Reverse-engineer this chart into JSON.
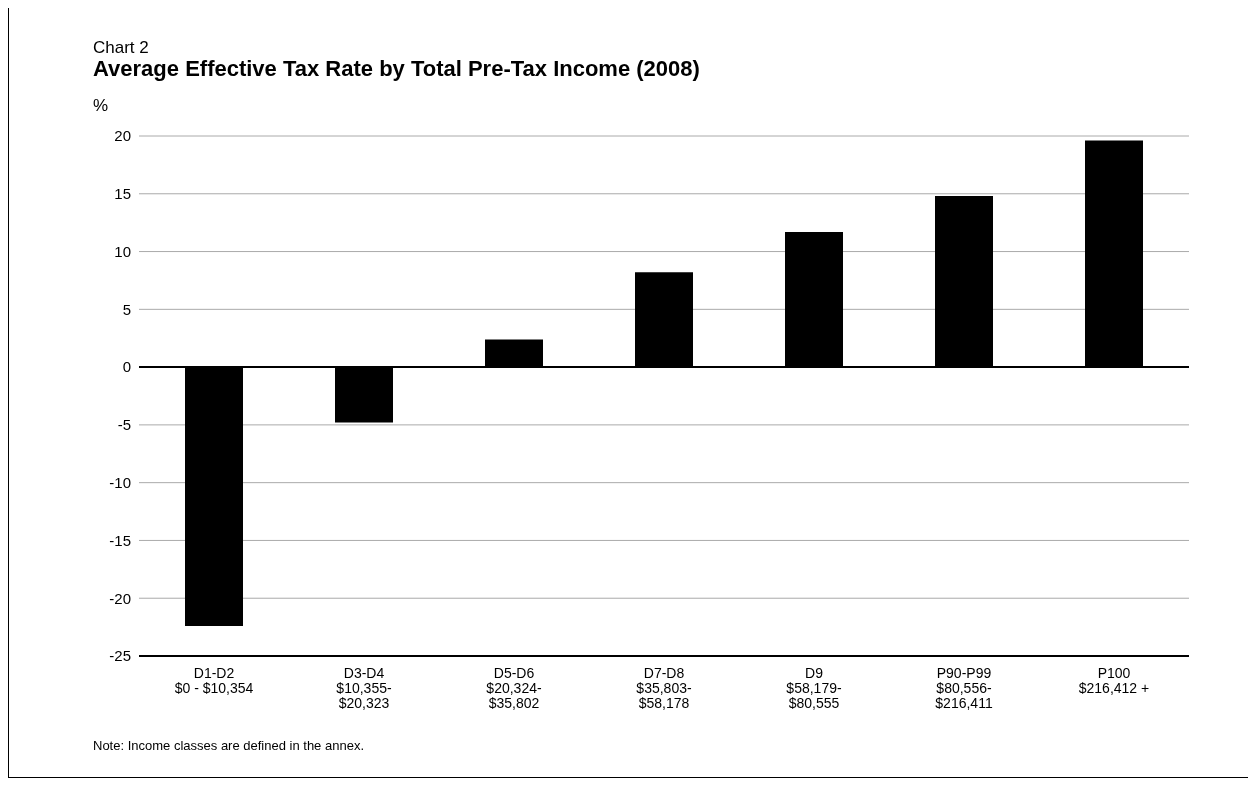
{
  "chart_data": {
    "type": "bar",
    "subtitle": "Chart 2",
    "title": "Average Effective Tax Rate by Total Pre-Tax Income (2008)",
    "ylabel": "%",
    "categories": [
      "D1-D2\n$0 - $10,354",
      "D3-D4\n$10,355-\n$20,323",
      "D5-D6\n$20,324-\n$35,802",
      "D7-D8\n$35,803-\n$58,178",
      "D9\n$58,179-\n$80,555",
      "P90-P99\n$80,556-\n$216,411",
      "P100\n$216,412 +"
    ],
    "values": [
      -22.4,
      -4.8,
      2.4,
      8.2,
      11.7,
      14.8,
      19.6
    ],
    "color": "#000000",
    "ylim": [
      -25,
      20
    ],
    "yticks": [
      -25,
      -20,
      -15,
      -10,
      -5,
      0,
      5,
      10,
      15,
      20
    ],
    "grid": "y",
    "ref_lines": [
      {
        "axis": "y",
        "value": 0,
        "color": "#000000"
      }
    ],
    "annotations": [
      "Note: Income classes are defined in the annex."
    ]
  }
}
